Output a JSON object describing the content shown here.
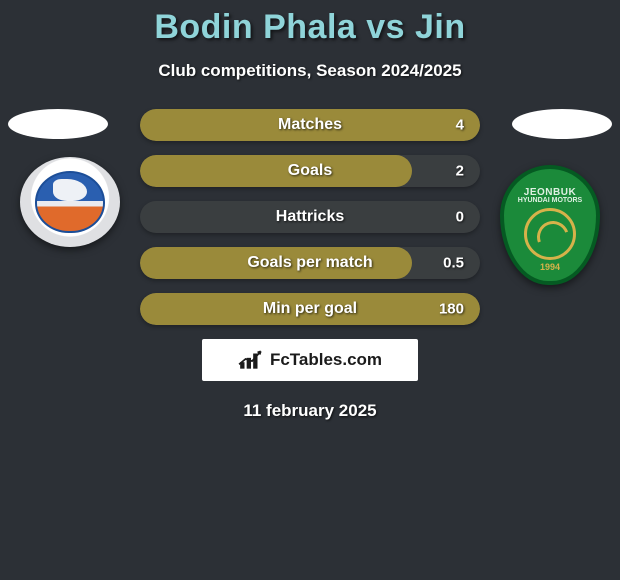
{
  "title": "Bodin Phala vs Jin",
  "subtitle": "Club competitions, Season 2024/2025",
  "date": "11 february 2025",
  "colors": {
    "page_bg": "#2c3036",
    "title_color": "#8fd4d9",
    "bar_track": "#3a3e40",
    "bar_fill": "#9a8a3a",
    "text": "#ffffff"
  },
  "left_crest": {
    "name": "buriram-style-crest",
    "primary": "#2a5fb0",
    "secondary": "#e06a2b"
  },
  "right_crest": {
    "name": "jeonbuk-crest",
    "top_text": "JEONBUK",
    "sub_text": "HYUNDAI MOTORS",
    "year": "1994",
    "bg": "#1b8a3a",
    "border": "#055a22",
    "accent": "#d6b24a"
  },
  "stats": [
    {
      "label": "Matches",
      "value": "4",
      "fill_pct": 100
    },
    {
      "label": "Goals",
      "value": "2",
      "fill_pct": 80
    },
    {
      "label": "Hattricks",
      "value": "0",
      "fill_pct": 0
    },
    {
      "label": "Goals per match",
      "value": "0.5",
      "fill_pct": 80
    },
    {
      "label": "Min per goal",
      "value": "180",
      "fill_pct": 100
    }
  ],
  "branding": {
    "text": "FcTables.com"
  }
}
